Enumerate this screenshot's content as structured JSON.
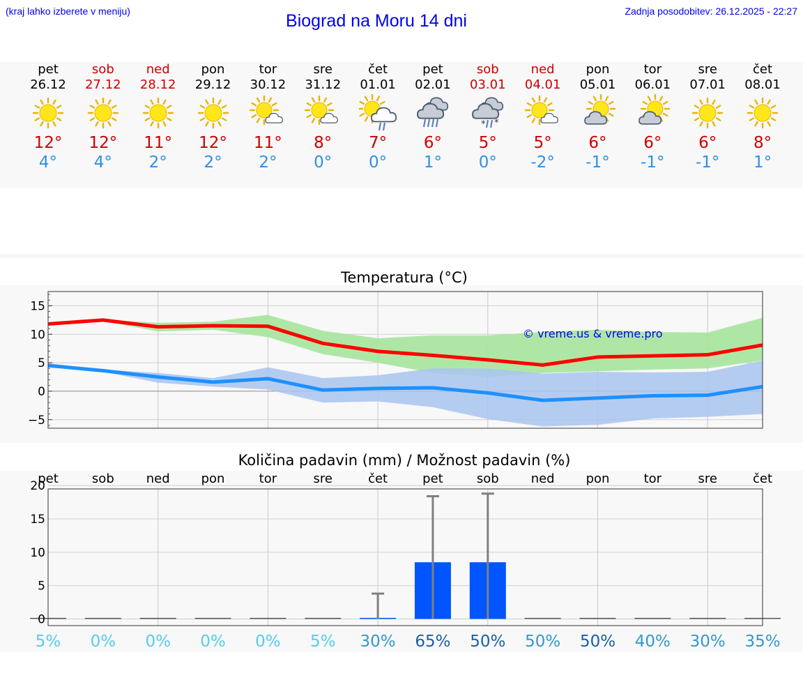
{
  "header": {
    "location_hint": "(kraj lahko izberete v meniju)",
    "title": "Biograd na Moru 14 dni",
    "last_update": "Zadnja posodobitev: 26.12.2025 - 22:27"
  },
  "forecast": [
    {
      "day": "pet",
      "date": "26.12",
      "weekend": false,
      "icon": "sunny-icon",
      "tmax": "12°",
      "tmin": "4°"
    },
    {
      "day": "sob",
      "date": "27.12",
      "weekend": true,
      "icon": "sunny-icon",
      "tmax": "12°",
      "tmin": "4°"
    },
    {
      "day": "ned",
      "date": "28.12",
      "weekend": true,
      "icon": "sunny-icon",
      "tmax": "11°",
      "tmin": "2°"
    },
    {
      "day": "pon",
      "date": "29.12",
      "weekend": false,
      "icon": "sunny-icon",
      "tmax": "12°",
      "tmin": "2°"
    },
    {
      "day": "tor",
      "date": "30.12",
      "weekend": false,
      "icon": "sun-small-cloud-icon",
      "tmax": "11°",
      "tmin": "2°"
    },
    {
      "day": "sre",
      "date": "31.12",
      "weekend": false,
      "icon": "sun-small-cloud-icon",
      "tmax": "8°",
      "tmin": "0°"
    },
    {
      "day": "čet",
      "date": "01.01",
      "weekend": false,
      "icon": "sun-cloud-rain-icon",
      "tmax": "7°",
      "tmin": "0°"
    },
    {
      "day": "pet",
      "date": "02.01",
      "weekend": false,
      "icon": "cloud-rain-icon",
      "tmax": "6°",
      "tmin": "1°"
    },
    {
      "day": "sob",
      "date": "03.01",
      "weekend": true,
      "icon": "cloud-sleet-icon",
      "tmax": "5°",
      "tmin": "0°"
    },
    {
      "day": "ned",
      "date": "04.01",
      "weekend": true,
      "icon": "sun-small-cloud-icon",
      "tmax": "5°",
      "tmin": "-2°"
    },
    {
      "day": "pon",
      "date": "05.01",
      "weekend": false,
      "icon": "sun-behind-cloud-icon",
      "tmax": "6°",
      "tmin": "-1°"
    },
    {
      "day": "tor",
      "date": "06.01",
      "weekend": false,
      "icon": "sun-behind-cloud-icon",
      "tmax": "6°",
      "tmin": "-1°"
    },
    {
      "day": "sre",
      "date": "07.01",
      "weekend": false,
      "icon": "sunny-icon",
      "tmax": "6°",
      "tmin": "-1°"
    },
    {
      "day": "čet",
      "date": "08.01",
      "weekend": false,
      "icon": "sunny-icon",
      "tmax": "8°",
      "tmin": "1°"
    }
  ],
  "colors": {
    "max_line": "#ff0000",
    "min_line": "#1e90ff",
    "max_band": "#aae6a0",
    "min_band": "#a9c4f0",
    "overlap_band": "#7cc4a8",
    "bar": "#0055ff",
    "whisker": "#808080",
    "grid": "#cccccc",
    "title_blue": "#0000ee",
    "weekend_red": "#cc0000"
  },
  "chart_data": [
    {
      "type": "line",
      "title": "Temperatura (°C)",
      "watermark": "© vreme.us & vreme.pro",
      "ylim": [
        -6.5,
        17.5
      ],
      "yticks": [
        -5,
        0,
        5,
        10,
        15
      ],
      "ytick_labels": [
        "−5",
        "0",
        "5",
        "10",
        "15"
      ],
      "x_days": 14,
      "series": [
        {
          "name": "max",
          "values": [
            11.8,
            12.5,
            11.3,
            11.5,
            11.4,
            8.4,
            7.0,
            6.3,
            5.5,
            4.6,
            6.0,
            6.2,
            6.4,
            8.1
          ],
          "band_low": [
            11.5,
            12.3,
            10.5,
            10.8,
            9.5,
            6.5,
            5.0,
            3.2,
            2.5,
            3.2,
            3.5,
            3.8,
            4.0,
            5.4
          ],
          "band_high": [
            12.1,
            12.6,
            12.0,
            12.2,
            13.4,
            10.6,
            9.3,
            9.8,
            9.8,
            10.4,
            10.8,
            10.4,
            10.3,
            12.9
          ]
        },
        {
          "name": "min",
          "values": [
            4.5,
            3.6,
            2.5,
            1.6,
            2.2,
            0.2,
            0.5,
            0.6,
            -0.3,
            -1.6,
            -1.2,
            -0.8,
            -0.7,
            0.8
          ],
          "band_low": [
            4.2,
            3.4,
            1.5,
            0.8,
            0.3,
            -2.0,
            -1.8,
            -2.8,
            -4.9,
            -6.2,
            -5.9,
            -4.8,
            -4.5,
            -4.0
          ],
          "band_high": [
            4.9,
            3.8,
            3.2,
            2.3,
            4.2,
            2.3,
            2.8,
            4.0,
            4.0,
            3.1,
            3.4,
            3.3,
            3.4,
            5.4
          ]
        }
      ]
    },
    {
      "type": "bar",
      "title": "Količina padavin (mm) / Možnost padavin (%)",
      "ylim": [
        -1,
        19.5
      ],
      "yticks": [
        0,
        5,
        10,
        15,
        20
      ],
      "ytick_labels": [
        "0",
        "5",
        "10",
        "15",
        "20"
      ],
      "categories": [
        "pet",
        "sob",
        "ned",
        "pon",
        "tor",
        "sre",
        "čet",
        "pet",
        "sob",
        "ned",
        "pon",
        "tor",
        "sre",
        "čet"
      ],
      "values": [
        0,
        0,
        0,
        0,
        0,
        0,
        0.1,
        8.5,
        8.5,
        0,
        0,
        0,
        0,
        0
      ],
      "whisker_high": [
        0,
        0,
        0,
        0,
        0,
        0,
        3.8,
        18.4,
        18.8,
        0,
        0,
        0,
        0,
        0
      ],
      "probabilities": [
        "5%",
        "0%",
        "0%",
        "0%",
        "0%",
        "5%",
        "30%",
        "65%",
        "50%",
        "50%",
        "50%",
        "40%",
        "30%",
        "35%"
      ],
      "probability_colors": [
        "#55ccee",
        "#55ccee",
        "#55ccee",
        "#55ccee",
        "#55ccee",
        "#55ccee",
        "#3399cc",
        "#1a5fa8",
        "#1a5fa8",
        "#3399cc",
        "#1a5fa8",
        "#3399cc",
        "#3399cc",
        "#3399cc"
      ]
    }
  ]
}
